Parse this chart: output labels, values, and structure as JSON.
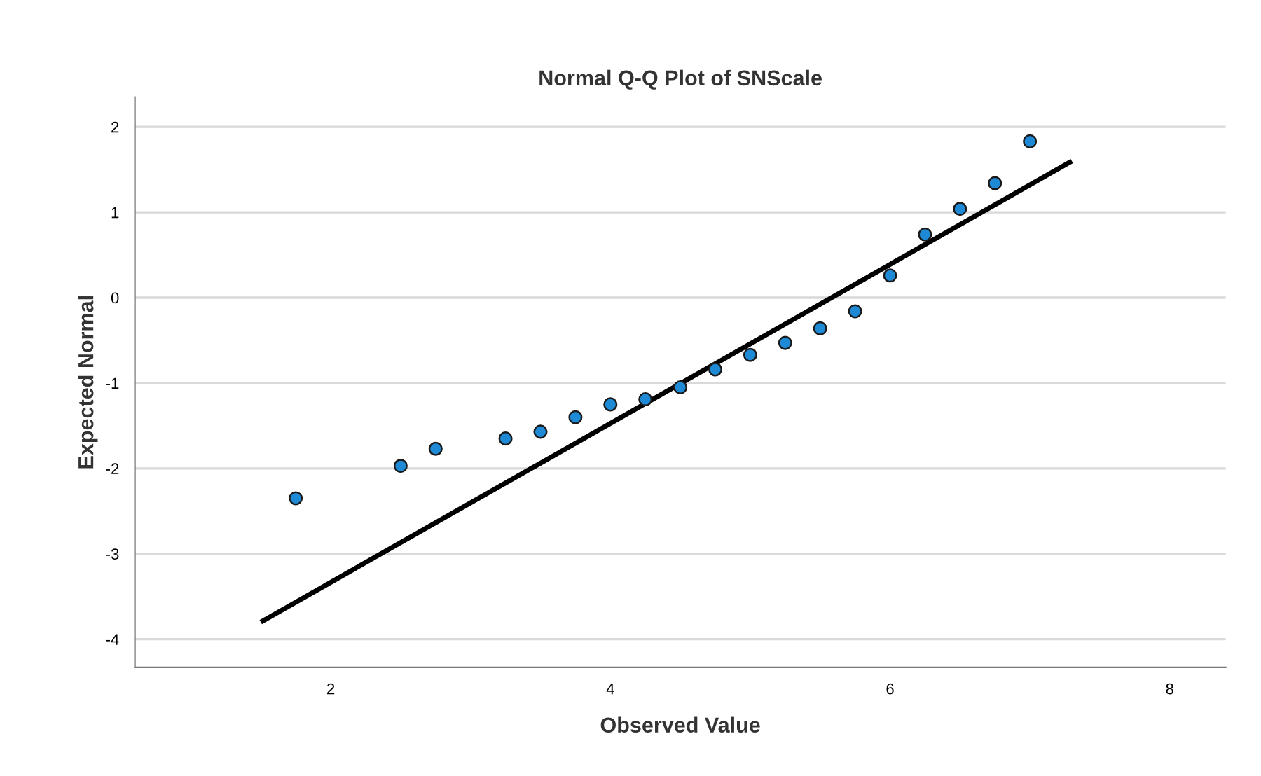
{
  "chart_data": {
    "type": "scatter",
    "title": "Normal Q-Q Plot of SNScale",
    "xlabel": "Observed Value",
    "ylabel": "Expected Normal",
    "x": [
      1.75,
      2.5,
      2.75,
      3.25,
      3.5,
      3.75,
      4.0,
      4.25,
      4.5,
      4.75,
      5.0,
      5.25,
      5.5,
      5.75,
      6.0,
      6.25,
      6.5,
      6.75,
      7.0
    ],
    "series": [
      {
        "color": "#1e8ad6",
        "marker": "circle",
        "values": [
          -2.35,
          -1.97,
          -1.77,
          -1.65,
          -1.57,
          -1.4,
          -1.25,
          -1.19,
          -1.05,
          -0.84,
          -0.67,
          -0.53,
          -0.36,
          -0.16,
          0.26,
          0.74,
          1.04,
          1.34,
          1.83
        ]
      },
      {
        "type": "line",
        "color": "#000000",
        "line_style": "solid",
        "marker": "none",
        "x": [
          1.5,
          7.3
        ],
        "values": [
          -3.8,
          1.6
        ]
      }
    ],
    "xlim": [
      0.6,
      8.4
    ],
    "ylim": [
      -4.33,
      2.35
    ],
    "xticks": [
      2,
      4,
      6,
      8
    ],
    "yticks": [
      -4,
      -3,
      -2,
      -1,
      0,
      1,
      2
    ],
    "grid": "y",
    "legend": false
  }
}
